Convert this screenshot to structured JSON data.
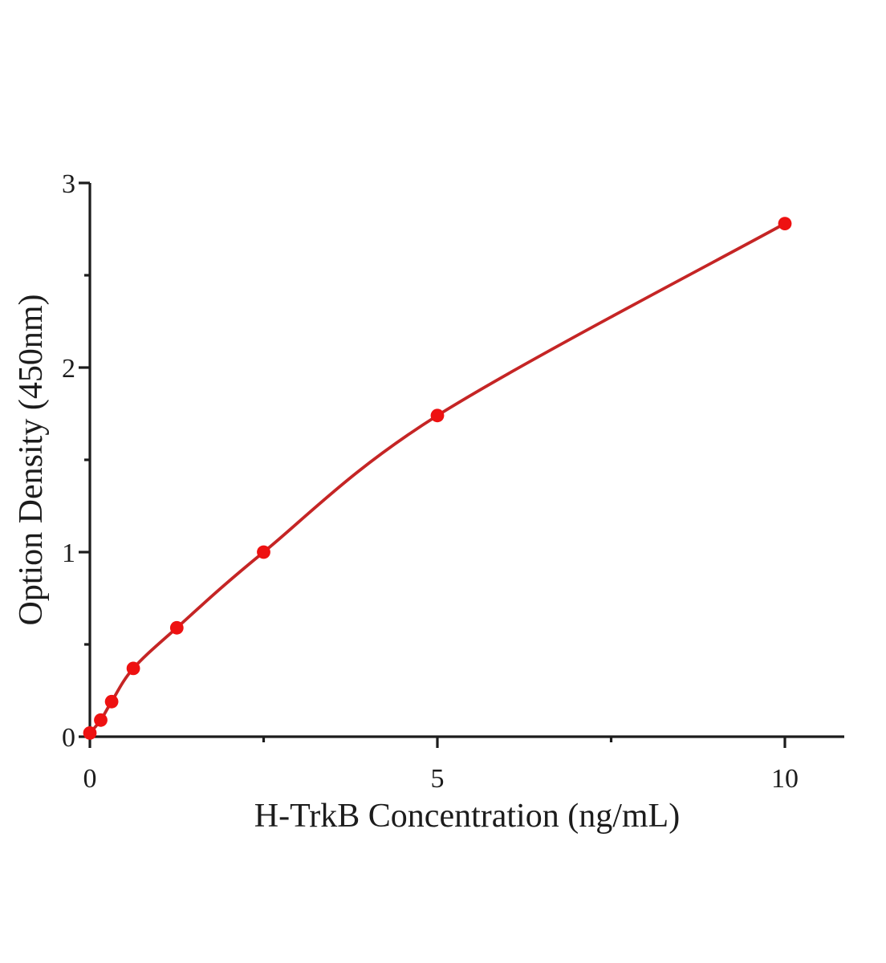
{
  "figure": {
    "background": "#ffffff"
  },
  "chart_data": {
    "type": "scatter",
    "title": "",
    "xlabel": "H-TrkB Concentration (ng/mL)",
    "ylabel": "Option Density (450nm)",
    "points": [
      {
        "x": 0,
        "y": 0.02
      },
      {
        "x": 0.156,
        "y": 0.09
      },
      {
        "x": 0.3125,
        "y": 0.19
      },
      {
        "x": 0.625,
        "y": 0.37
      },
      {
        "x": 1.25,
        "y": 0.59
      },
      {
        "x": 2.5,
        "y": 1.0
      },
      {
        "x": 5,
        "y": 1.74
      },
      {
        "x": 10,
        "y": 2.78
      }
    ],
    "curve": "smooth interpolation through all points (4-parameter-logistic style standard curve)",
    "xlim": [
      0,
      10.85
    ],
    "ylim": [
      0,
      3
    ],
    "x_major_ticks": [
      {
        "value": 0,
        "label": "0"
      },
      {
        "value": 5,
        "label": "5"
      },
      {
        "value": 10,
        "label": "10"
      }
    ],
    "x_minor_ticks": [
      2.5,
      7.5
    ],
    "y_major_ticks": [
      {
        "value": 0,
        "label": "0"
      },
      {
        "value": 1,
        "label": "1"
      },
      {
        "value": 2,
        "label": "2"
      },
      {
        "value": 3,
        "label": "3"
      }
    ],
    "y_minor_ticks": [
      0.5,
      1.5,
      2.5
    ],
    "grid": false,
    "legend": null,
    "colors": {
      "marker": "#ee1111",
      "line": "#c52525",
      "axis": "#1c1c1c"
    }
  }
}
